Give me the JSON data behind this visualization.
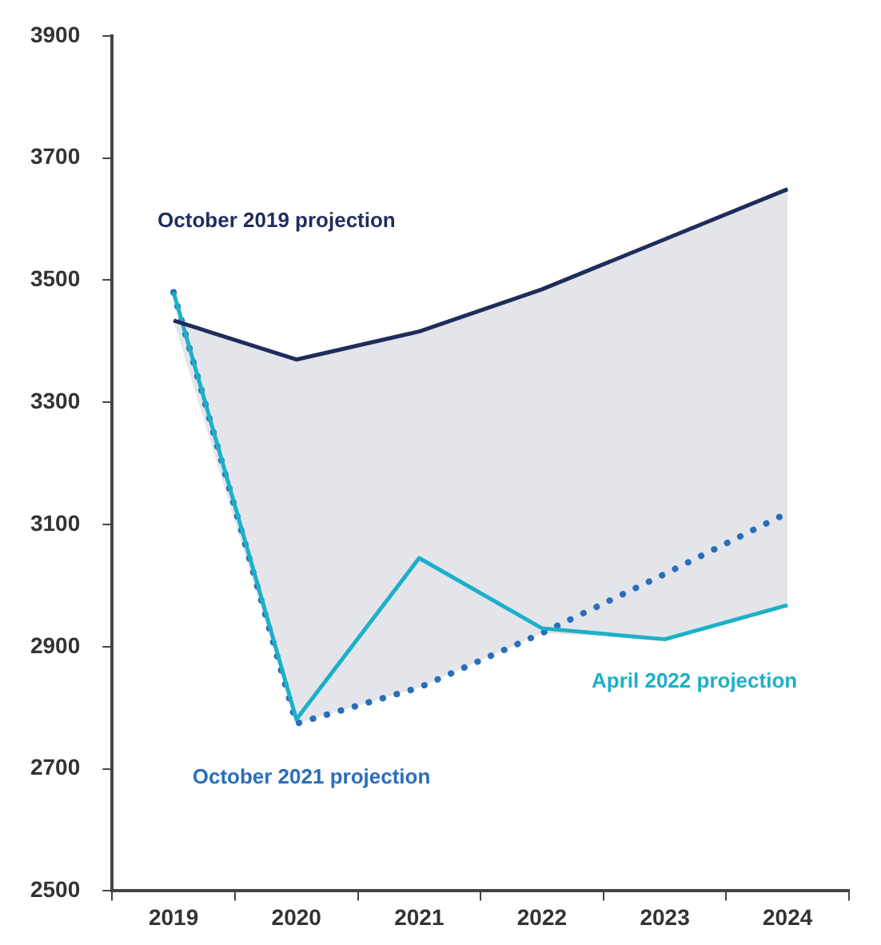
{
  "chart_data": {
    "type": "line",
    "categories": [
      "2019",
      "2020",
      "2021",
      "2022",
      "2023",
      "2024"
    ],
    "ylim": [
      2500,
      3900
    ],
    "yticks": [
      2500,
      2700,
      2900,
      3100,
      3300,
      3500,
      3700,
      3900
    ],
    "grid": false,
    "legend": false,
    "marker": "none",
    "series": [
      {
        "name": "October 2019 projection",
        "color": "#1f2d5c",
        "line_style": "solid",
        "values": [
          3434,
          3370,
          3416,
          3485,
          3567,
          3649
        ],
        "lower": [
          3434,
          2774,
          2833,
          2922,
          2912,
          2968
        ],
        "upper": [
          3434,
          3370,
          3416,
          3485,
          3567,
          3649
        ]
      },
      {
        "name": "April 2022 projection",
        "color": "#1cb0c8",
        "line_style": "solid",
        "values": [
          3480,
          2781,
          3045,
          2930,
          2912,
          2968
        ]
      },
      {
        "name": "October 2021 projection",
        "color": "#2a6ebb",
        "line_style": "dotted",
        "values": [
          3480,
          2774,
          2833,
          2922,
          3019,
          3119
        ]
      }
    ]
  }
}
